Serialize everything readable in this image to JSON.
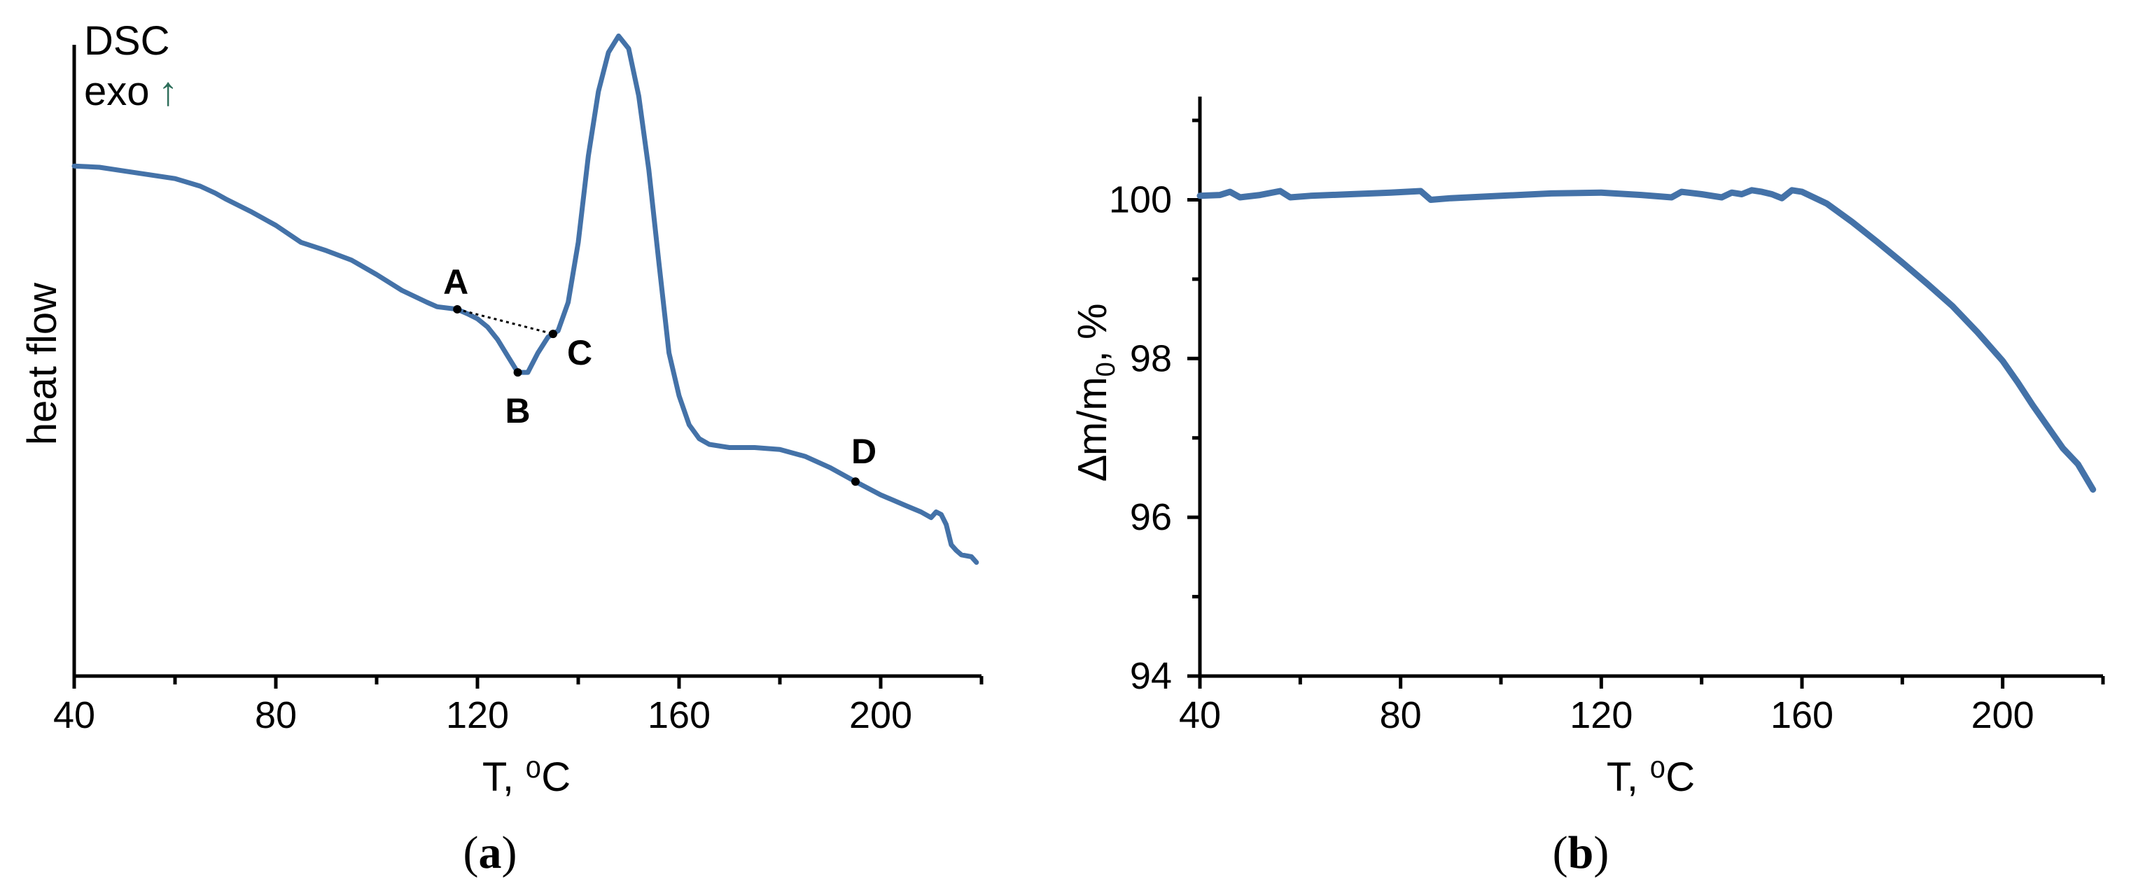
{
  "chart_data": [
    {
      "type": "line",
      "panel_label": "a",
      "xlabel": "T, ⁰C",
      "ylabel": "heat flow",
      "corner_label_line1": "DSC",
      "corner_label_line2": "exo",
      "corner_arrow": "↑",
      "xlim": [
        40,
        220
      ],
      "ylim": [
        0,
        100
      ],
      "x_ticks": [
        40,
        80,
        120,
        160,
        200
      ],
      "x_minor_ticks": [
        60,
        100,
        140,
        180,
        220
      ],
      "series_color": "#4472a8",
      "series": [
        {
          "x": [
            40,
            45,
            50,
            55,
            60,
            65,
            68,
            70,
            75,
            80,
            85,
            90,
            95,
            100,
            105,
            110,
            112,
            116,
            118,
            120,
            122,
            124,
            126,
            128,
            130,
            132,
            134,
            136,
            138,
            140,
            142,
            144,
            146,
            148,
            150,
            152,
            154,
            156,
            158,
            160,
            162,
            164,
            166,
            170,
            175,
            180,
            185,
            190,
            195,
            200,
            205,
            208,
            210,
            211,
            212,
            213,
            214,
            215,
            216,
            218,
            219
          ],
          "y": [
            80.8,
            80.6,
            80.0,
            79.4,
            78.8,
            77.6,
            76.5,
            75.6,
            73.6,
            71.4,
            68.7,
            67.4,
            65.9,
            63.6,
            61.1,
            59.2,
            58.5,
            58.1,
            57.4,
            56.6,
            55.3,
            53.3,
            50.7,
            48.1,
            48.1,
            51.2,
            53.7,
            54.7,
            59.2,
            68.7,
            82.4,
            92.6,
            98.8,
            101.4,
            99.4,
            91.9,
            80.2,
            65.5,
            51.2,
            44.4,
            39.8,
            37.6,
            36.7,
            36.2,
            36.2,
            35.9,
            34.8,
            33.0,
            30.8,
            28.7,
            27.0,
            26.0,
            25.1,
            26.0,
            25.6,
            24.0,
            20.8,
            19.9,
            19.2,
            18.9,
            18.0
          ]
        }
      ],
      "points": [
        {
          "label": "A",
          "x": 116,
          "y": 58.1
        },
        {
          "label": "B",
          "x": 128,
          "y": 48.1
        },
        {
          "label": "C",
          "x": 135,
          "y": 54.2
        },
        {
          "label": "D",
          "x": 195,
          "y": 30.8
        }
      ]
    },
    {
      "type": "line",
      "panel_label": "b",
      "xlabel": "T, ⁰C",
      "ylabel_prefix": "∆m/m",
      "ylabel_sub": "0",
      "ylabel_suffix": ", %",
      "xlim": [
        40,
        220
      ],
      "ylim": [
        94,
        101.3
      ],
      "x_ticks": [
        40,
        80,
        120,
        160,
        200
      ],
      "x_minor_ticks": [
        60,
        100,
        140,
        180,
        220
      ],
      "y_ticks": [
        94,
        96,
        98,
        100
      ],
      "y_minor_ticks": [
        95,
        97,
        99,
        101
      ],
      "series_color": "#3d6aa0",
      "series": [
        {
          "x": [
            40,
            44,
            46,
            48,
            52,
            56,
            58,
            62,
            70,
            78,
            84,
            86,
            90,
            100,
            110,
            120,
            128,
            134,
            136,
            140,
            144,
            146,
            148,
            150,
            152,
            154,
            156,
            158,
            160,
            165,
            170,
            175,
            180,
            185,
            190,
            195,
            200,
            203,
            206,
            209,
            212,
            215,
            218
          ],
          "y": [
            100.05,
            100.06,
            100.1,
            100.03,
            100.06,
            100.11,
            100.03,
            100.05,
            100.07,
            100.09,
            100.11,
            100.0,
            100.02,
            100.05,
            100.08,
            100.09,
            100.06,
            100.03,
            100.1,
            100.07,
            100.03,
            100.09,
            100.07,
            100.12,
            100.1,
            100.07,
            100.02,
            100.12,
            100.1,
            99.95,
            99.72,
            99.47,
            99.21,
            98.94,
            98.66,
            98.33,
            97.97,
            97.7,
            97.41,
            97.14,
            96.87,
            96.67,
            96.35
          ]
        }
      ]
    }
  ]
}
